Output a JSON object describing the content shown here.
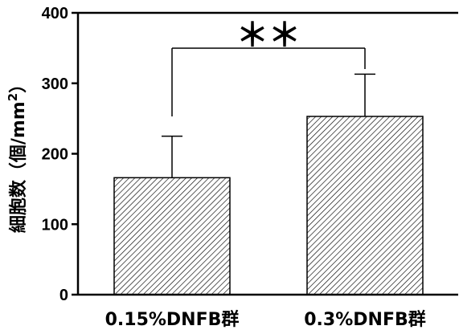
{
  "chart_data": {
    "type": "bar",
    "categories": [
      "0.15%DNFB群",
      "0.3%DNFB群"
    ],
    "values": [
      166,
      253
    ],
    "errors": [
      59,
      60
    ],
    "ylabel_main": "細胞数（個/mm",
    "ylabel_sup": "2",
    "ylabel_close": "）",
    "ylim": [
      0,
      400
    ],
    "yticks": [
      0,
      100,
      200,
      300,
      400
    ],
    "ytick_labels": [
      "0",
      "100",
      "200",
      "300",
      "400"
    ],
    "significance": {
      "pair": [
        0,
        1
      ],
      "label": "＊＊"
    },
    "bar_fill": "hatched",
    "colors": {
      "axis": "#000000",
      "bar_stroke": "#000000",
      "hatch": "#000000"
    }
  }
}
